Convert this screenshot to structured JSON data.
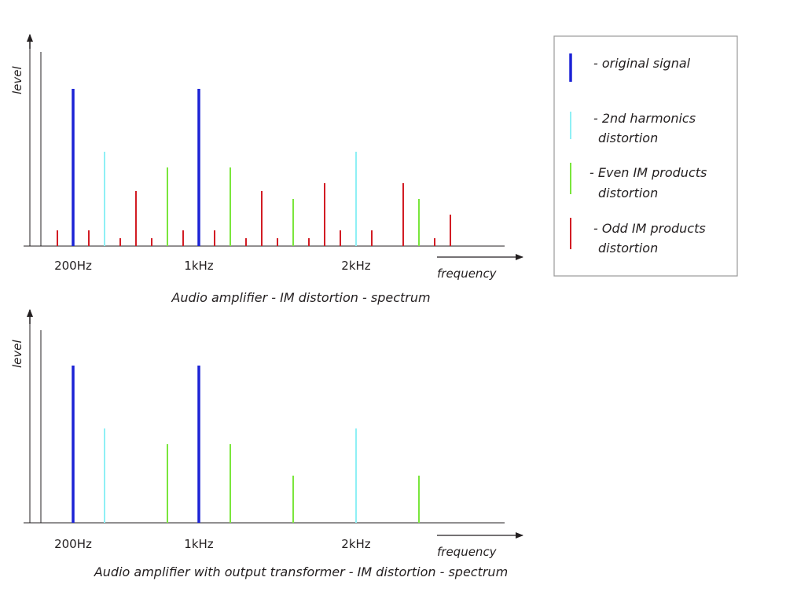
{
  "colors": {
    "original": "#1c23d6",
    "harmonic2": "#8ff0f5",
    "even_im": "#7ae63c",
    "odd_im": "#d21c24",
    "axis": "#231f20",
    "legend_border": "#9a9a9a"
  },
  "legend": {
    "original": [
      "- original signal"
    ],
    "harmonic2": [
      "- 2nd harmonics",
      "distortion"
    ],
    "even_im": [
      "-  Even IM products",
      "distortion"
    ],
    "odd_im": [
      "- Odd IM products",
      "distortion"
    ]
  },
  "chart_data": [
    {
      "type": "bar",
      "title": "Audio amplifier - IM  distortion - spectrum",
      "xlabel": "frequency",
      "ylabel": "level",
      "x_tick_labels": [
        "200Hz",
        "1kHz",
        "2kHz"
      ],
      "x_tick_values": [
        200,
        1000,
        2000
      ],
      "ylim": [
        0,
        1
      ],
      "series": [
        {
          "name": "original",
          "x": [
            200,
            1000
          ],
          "values": [
            1.0,
            1.0
          ]
        },
        {
          "name": "harmonic2",
          "x": [
            400,
            2000
          ],
          "values": [
            0.6,
            0.6
          ]
        },
        {
          "name": "even_im",
          "x": [
            800,
            1200,
            1600,
            2400
          ],
          "values": [
            0.5,
            0.5,
            0.3,
            0.3
          ]
        },
        {
          "name": "odd_im",
          "x": [
            100,
            300,
            500,
            600,
            700,
            900,
            1100,
            1300,
            1400,
            1500,
            1700,
            1800,
            1900,
            2100,
            2300,
            2500,
            2600
          ],
          "values": [
            0.1,
            0.1,
            0.05,
            0.35,
            0.05,
            0.1,
            0.1,
            0.05,
            0.35,
            0.05,
            0.05,
            0.4,
            0.1,
            0.1,
            0.4,
            0.05,
            0.2
          ]
        }
      ]
    },
    {
      "type": "bar",
      "title": "Audio amplifier with output transformer - IM  distortion - spectrum",
      "xlabel": "frequency",
      "ylabel": "level",
      "x_tick_labels": [
        "200Hz",
        "1kHz",
        "2kHz"
      ],
      "x_tick_values": [
        200,
        1000,
        2000
      ],
      "ylim": [
        0,
        1
      ],
      "series": [
        {
          "name": "original",
          "x": [
            200,
            1000
          ],
          "values": [
            1.0,
            1.0
          ]
        },
        {
          "name": "harmonic2",
          "x": [
            400,
            2000
          ],
          "values": [
            0.6,
            0.6
          ]
        },
        {
          "name": "even_im",
          "x": [
            800,
            1200,
            1600,
            2400
          ],
          "values": [
            0.5,
            0.5,
            0.3,
            0.3
          ]
        }
      ]
    }
  ]
}
